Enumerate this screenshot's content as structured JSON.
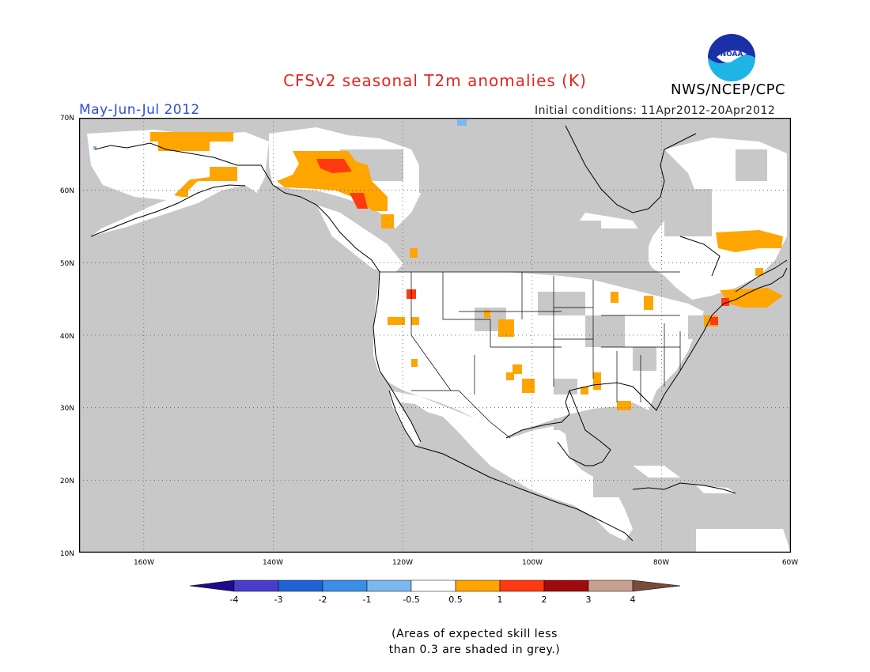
{
  "header": {
    "title": "CFSv2 seasonal T2m anomalies (K)",
    "agency": "NWS/NCEP/CPC",
    "logo_text": "NOAA",
    "period": "May-Jun-Jul 2012",
    "initial_conditions": "Initial conditions: 11Apr2012-20Apr2012"
  },
  "map": {
    "lat_labels": [
      "70N",
      "60N",
      "50N",
      "40N",
      "30N",
      "20N",
      "10N"
    ],
    "lon_labels": [
      "160W",
      "140W",
      "120W",
      "100W",
      "80W",
      "60W"
    ],
    "lat_range": [
      10,
      70
    ],
    "lon_range": [
      -170,
      -60
    ],
    "skill_mask_color": "#c8c8c8",
    "anomaly_regions": [
      "Alaska/Yukon warm",
      "British Columbia warm",
      "Quebec/Labrador warm",
      "New England warm",
      "Southern Plains warm",
      "Gulf coast warm"
    ]
  },
  "colorbar": {
    "tick_labels": [
      "-4",
      "-3",
      "-2",
      "-1",
      "-0.5",
      "0.5",
      "1",
      "2",
      "3",
      "4"
    ],
    "colors": [
      "#1f0a8c",
      "#4a3ccc",
      "#1f62d6",
      "#3a8ee8",
      "#7ab8f0",
      "#ffffff",
      "#ffa500",
      "#ff3a10",
      "#a00a0a",
      "#c8a090",
      "#7a4a3a"
    ]
  },
  "note": {
    "line1": "(Areas of expected skill less",
    "line2": "than 0.3 are shaded in grey.)"
  }
}
